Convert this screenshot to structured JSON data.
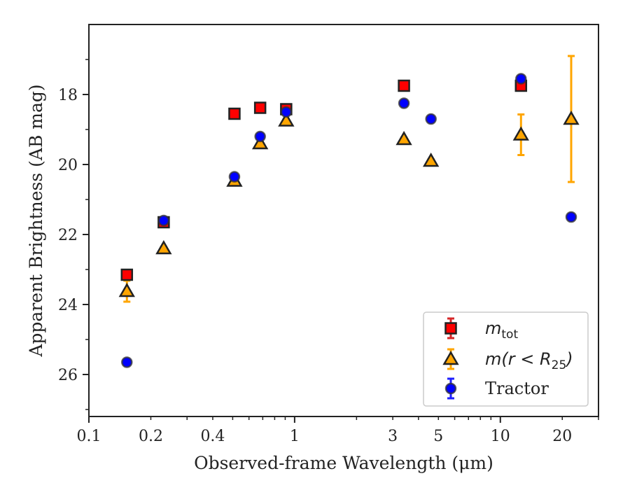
{
  "chart_data": {
    "type": "scatter",
    "title": "",
    "xlabel": "Observed-frame Wavelength (μm)",
    "ylabel": "Apparent Brightness (AB mag)",
    "xscale": "log",
    "xlim": [
      0.1,
      30
    ],
    "ylim": [
      27.2,
      16.0
    ],
    "y_inverted": true,
    "x_ticks": [
      {
        "value": 0.1,
        "label": "0.1"
      },
      {
        "value": 0.2,
        "label": "0.2"
      },
      {
        "value": 0.4,
        "label": "0.4"
      },
      {
        "value": 1,
        "label": "1"
      },
      {
        "value": 3,
        "label": "3"
      },
      {
        "value": 5,
        "label": "5"
      },
      {
        "value": 10,
        "label": "10"
      },
      {
        "value": 20,
        "label": "20"
      }
    ],
    "y_ticks": [
      {
        "value": 18,
        "label": "18"
      },
      {
        "value": 20,
        "label": "20"
      },
      {
        "value": 22,
        "label": "22"
      },
      {
        "value": 24,
        "label": "24"
      },
      {
        "value": 26,
        "label": "26"
      }
    ],
    "grid": false,
    "legend_position": "bottom-right",
    "series": [
      {
        "name": "m_tot",
        "legend_main": "m",
        "legend_sub": "tot",
        "legend_tail": "",
        "marker": "square",
        "fill": "#ff0000",
        "edge": "#222222",
        "errcolor": "#d62728",
        "points": [
          {
            "x": 0.153,
            "y": 23.15,
            "err": 0.1
          },
          {
            "x": 0.231,
            "y": 21.65,
            "err": 0.05
          },
          {
            "x": 0.51,
            "y": 18.55,
            "err": 0.05
          },
          {
            "x": 0.68,
            "y": 18.38,
            "err": 0.05
          },
          {
            "x": 0.91,
            "y": 18.42,
            "err": 0.12
          },
          {
            "x": 3.4,
            "y": 17.75,
            "err": 0.05
          },
          {
            "x": 12.6,
            "y": 17.75,
            "err": 0.05
          }
        ]
      },
      {
        "name": "m(r < R25)",
        "legend_main": "m(r < R",
        "legend_sub": "25",
        "legend_tail": ")",
        "marker": "triangle",
        "fill": "#ffa500",
        "edge": "#222222",
        "errcolor": "#ffa500",
        "points": [
          {
            "x": 0.153,
            "y": 23.62,
            "err": 0.3
          },
          {
            "x": 0.231,
            "y": 22.4,
            "err": 0.05
          },
          {
            "x": 0.51,
            "y": 20.47,
            "err": 0.05
          },
          {
            "x": 0.68,
            "y": 19.4,
            "err": 0.05
          },
          {
            "x": 0.91,
            "y": 18.75,
            "err": 0.05
          },
          {
            "x": 3.4,
            "y": 19.28,
            "err": 0.05
          },
          {
            "x": 4.6,
            "y": 19.9,
            "err": 0.05
          },
          {
            "x": 12.6,
            "y": 19.15,
            "err": 0.58
          },
          {
            "x": 22.1,
            "y": 18.7,
            "err": 1.8
          }
        ]
      },
      {
        "name": "Tractor",
        "legend_main": "Tractor",
        "legend_sub": "",
        "legend_tail": "",
        "marker": "circle",
        "fill": "#0000ff",
        "edge": "#333333",
        "errcolor": "#1f1fff",
        "points": [
          {
            "x": 0.153,
            "y": 25.65,
            "err": 0.05
          },
          {
            "x": 0.231,
            "y": 21.6,
            "err": 0.05
          },
          {
            "x": 0.51,
            "y": 20.35,
            "err": 0.05
          },
          {
            "x": 0.68,
            "y": 19.2,
            "err": 0.05
          },
          {
            "x": 0.91,
            "y": 18.5,
            "err": 0.05
          },
          {
            "x": 3.4,
            "y": 18.25,
            "err": 0.05
          },
          {
            "x": 4.6,
            "y": 18.7,
            "err": 0.05
          },
          {
            "x": 12.6,
            "y": 17.55,
            "err": 0.05
          },
          {
            "x": 22.1,
            "y": 21.5,
            "err": 0.05
          }
        ]
      }
    ]
  }
}
